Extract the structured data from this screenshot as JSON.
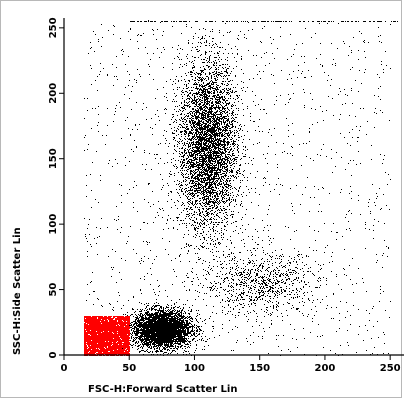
{
  "chart_data": {
    "type": "scatter",
    "title": "",
    "xlabel": "FSC-H:Forward Scatter Lin",
    "ylabel": "SSC-H:Side Scatter Lin",
    "xlim": [
      0,
      256
    ],
    "ylim": [
      0,
      256
    ],
    "x_ticks": [
      0,
      50,
      100,
      150,
      200,
      250
    ],
    "y_ticks": [
      0,
      50,
      100,
      150,
      200,
      250
    ],
    "grid": false,
    "legend": "none",
    "series": [
      {
        "color": "#000000",
        "clusters": [
          {
            "region": "debris/low-scatter",
            "center": [
              75,
              20
            ],
            "spread": [
              11,
              7
            ],
            "count": 5000
          },
          {
            "region": "high-side-scatter",
            "center": [
              110,
              160
            ],
            "spread": [
              11,
              32
            ],
            "count": 6000
          },
          {
            "region": "mid population",
            "center": [
              150,
              55
            ],
            "spread": [
              22,
              12
            ],
            "count": 900
          },
          {
            "region": "background",
            "x_range": [
              15,
              250
            ],
            "y_range": [
              0,
              256
            ],
            "count": 1400
          },
          {
            "region": "top saturation",
            "x_range": [
              50,
              256
            ],
            "y_value": 255,
            "count": 180
          }
        ]
      },
      {
        "color": "#ff0000",
        "clusters": [
          {
            "region": "gated",
            "x_range": [
              15,
              50
            ],
            "y_range": [
              0,
              30
            ],
            "count": 6500
          }
        ]
      }
    ]
  }
}
